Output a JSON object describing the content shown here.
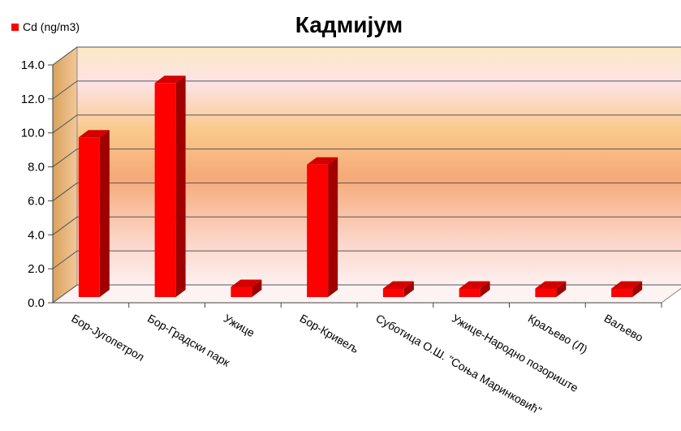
{
  "chart_data": {
    "type": "bar3d",
    "title": "Кадмијум",
    "legend": "Cd  (ng/m3)",
    "legend_position": "top-left",
    "color": "#ff0000",
    "categories": [
      "Бор-Југопетрол",
      "Бор-Градски парк",
      "Ужице",
      "Бор-Кривељ",
      "Суботица О.Ш. \"Соња Маринковић\"",
      "Ужице-Народно позориште",
      "Краљево (Л)",
      "Ваљево"
    ],
    "values": [
      9.4,
      12.6,
      0.6,
      7.8,
      0.5,
      0.5,
      0.5,
      0.5
    ],
    "ylim": [
      0,
      14
    ],
    "yticks": [
      {
        "value": 0,
        "label": "0.0"
      },
      {
        "value": 2,
        "label": "2.0"
      },
      {
        "value": 4,
        "label": "4.0"
      },
      {
        "value": 6,
        "label": "6.0"
      },
      {
        "value": 8,
        "label": "8.0"
      },
      {
        "value": 10,
        "label": "10.0"
      },
      {
        "value": 12,
        "label": "12.0"
      },
      {
        "value": 14,
        "label": "14.0"
      }
    ],
    "grid": true
  }
}
